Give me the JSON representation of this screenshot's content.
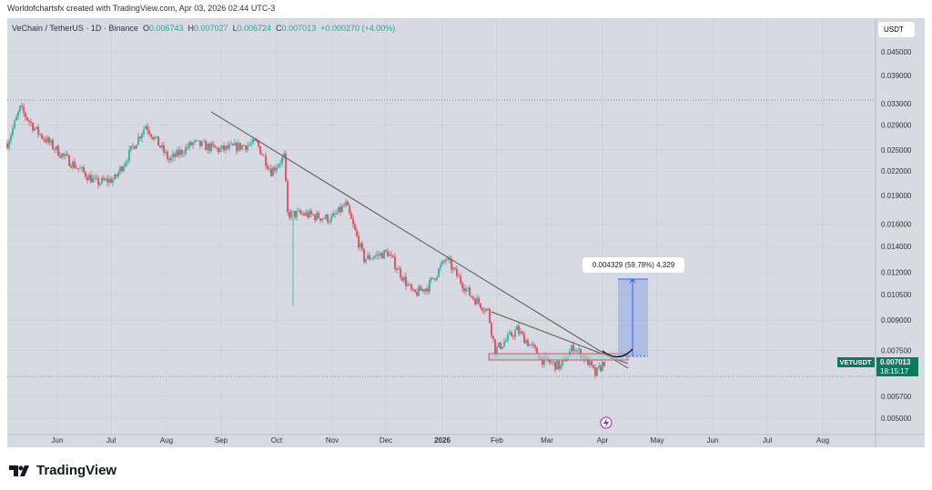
{
  "credit": "Worldofchartsfx created with TradingView.com, Apr 03, 2026 02:44 UTC-3",
  "legend": {
    "symbol": "VeChain / TetherUS · 1D · Binance",
    "o_label": "O",
    "o": "0.006743",
    "h_label": "H",
    "h": "0.007027",
    "l_label": "L",
    "l": "0.006724",
    "c_label": "C",
    "c": "0.007013",
    "change": "+0.000270 (+4.00%)"
  },
  "currency_button": "USDT",
  "price_tag": {
    "symbol": "VETUSDT",
    "price": "0.007013",
    "countdown": "18:15:17",
    "color": "#0b7a5f"
  },
  "measure_label": "0.004329 (59.78%) 4,329",
  "footer_logo": "TradingView",
  "chart_data": {
    "type": "candlestick",
    "scale": "log",
    "ylim": [
      0.0045,
      0.05
    ],
    "y_ticks": [
      "0.045000",
      "0.039000",
      "0.033000",
      "0.029000",
      "0.025000",
      "0.022000",
      "0.019000",
      "0.016000",
      "0.014000",
      "0.012000",
      "0.010500",
      "0.009000",
      "0.007500",
      "0.005700",
      "0.005000"
    ],
    "x_ticks": [
      "Jun",
      "Jul",
      "Aug",
      "Sep",
      "Oct",
      "Nov",
      "Dec",
      "2026",
      "Feb",
      "Mar",
      "Apr",
      "May",
      "Jun",
      "Jul",
      "Aug"
    ],
    "approx_close_path": [
      [
        "2025-05-10",
        0.026
      ],
      [
        "2025-05-17",
        0.032
      ],
      [
        "2025-05-26",
        0.028
      ],
      [
        "2025-06-10",
        0.024
      ],
      [
        "2025-06-28",
        0.0205
      ],
      [
        "2025-07-08",
        0.021
      ],
      [
        "2025-07-25",
        0.029
      ],
      [
        "2025-08-07",
        0.0235
      ],
      [
        "2025-08-20",
        0.026
      ],
      [
        "2025-09-04",
        0.025
      ],
      [
        "2025-09-24",
        0.026
      ],
      [
        "2025-10-02",
        0.022
      ],
      [
        "2025-10-09",
        0.024
      ],
      [
        "2025-10-11",
        0.017
      ],
      [
        "2025-10-20",
        0.017
      ],
      [
        "2025-11-04",
        0.0165
      ],
      [
        "2025-11-12",
        0.018
      ],
      [
        "2025-11-22",
        0.013
      ],
      [
        "2025-12-05",
        0.0135
      ],
      [
        "2025-12-19",
        0.0105
      ],
      [
        "2025-12-27",
        0.011
      ],
      [
        "2026-01-06",
        0.013
      ],
      [
        "2026-01-19",
        0.0105
      ],
      [
        "2026-01-29",
        0.0095
      ],
      [
        "2026-02-02",
        0.0075
      ],
      [
        "2026-02-14",
        0.0085
      ],
      [
        "2026-02-28",
        0.0071
      ],
      [
        "2026-03-10",
        0.0068
      ],
      [
        "2026-03-17",
        0.0077
      ],
      [
        "2026-03-25",
        0.007
      ],
      [
        "2026-03-29",
        0.0065
      ],
      [
        "2026-04-03",
        0.007013
      ]
    ],
    "colors": {
      "up": "#22ab94",
      "down": "#f23645"
    }
  }
}
